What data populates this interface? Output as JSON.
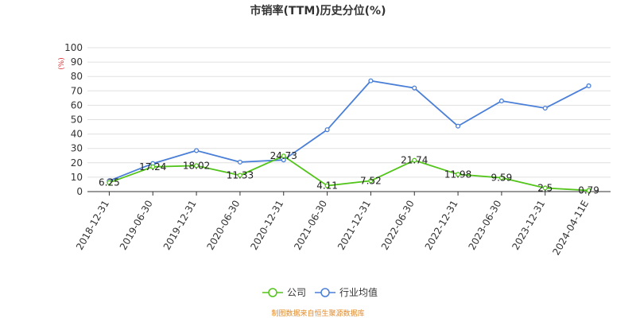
{
  "chart_data": {
    "type": "line",
    "title": "市销率(TTM)历史分位(%)",
    "unit_label": "(%)",
    "categories": [
      "2018-12-31",
      "2019-06-30",
      "2019-12-31",
      "2020-06-30",
      "2020-12-31",
      "2021-06-30",
      "2021-12-31",
      "2022-06-30",
      "2022-12-31",
      "2023-06-30",
      "2023-12-31",
      "2024-04-11E"
    ],
    "ylim": [
      0,
      100
    ],
    "yticks": [
      0,
      10,
      20,
      30,
      40,
      50,
      60,
      70,
      80,
      90,
      100
    ],
    "grid": true,
    "legend_position": "bottom-center",
    "series": [
      {
        "name": "公司",
        "color": "#52c41a",
        "values": [
          6.25,
          17.24,
          18.02,
          11.33,
          24.73,
          4.11,
          7.52,
          21.74,
          11.98,
          9.59,
          2.5,
          0.79
        ],
        "labels": [
          "6.25",
          "17.24",
          "18.02",
          "11.33",
          "24.73",
          "4.11",
          "7.52",
          "21.74",
          "11.98",
          "9.59",
          "2.5",
          "0.79"
        ]
      },
      {
        "name": "行业均值",
        "color": "#4a7fd8",
        "values": [
          7.5,
          19.5,
          28.5,
          20.5,
          22,
          43,
          77,
          72,
          45.5,
          63,
          58,
          73.5
        ]
      }
    ]
  },
  "source_note": "制图数据来自恒生聚源数据库"
}
